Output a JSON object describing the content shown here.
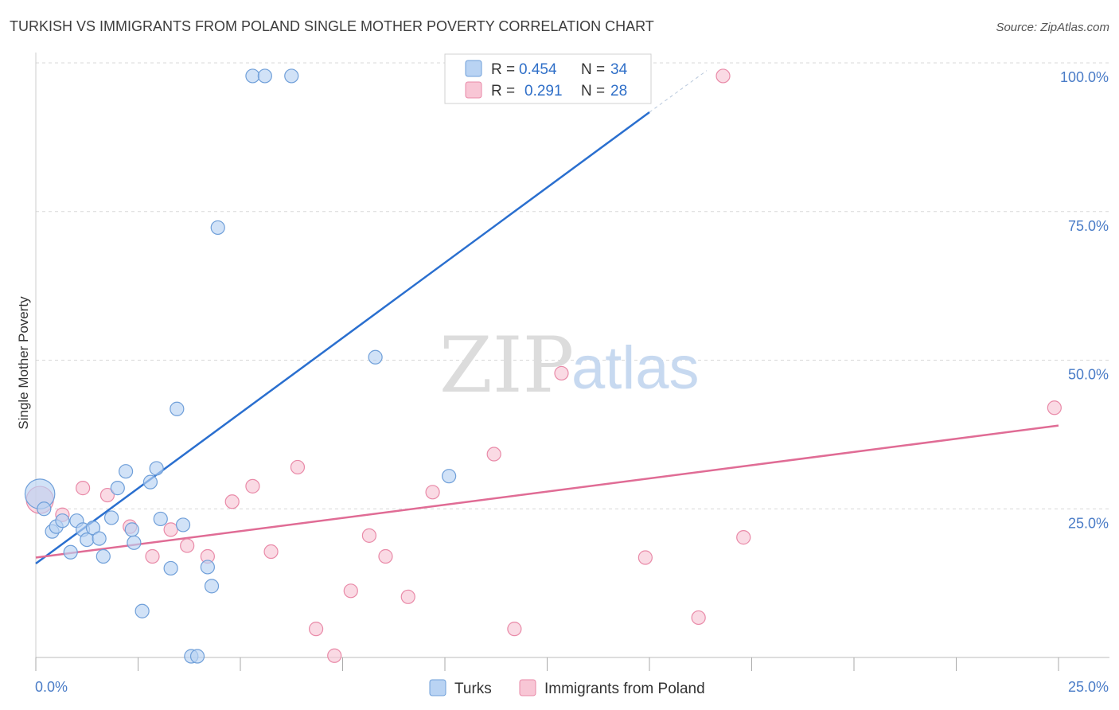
{
  "title": "TURKISH VS IMMIGRANTS FROM POLAND SINGLE MOTHER POVERTY CORRELATION CHART",
  "source": "Source: ZipAtlas.com",
  "watermark": {
    "zip": "ZIP",
    "atlas": "atlas"
  },
  "colors": {
    "turks_fill": "#b9d3f3",
    "turks_stroke": "#6f9fd9",
    "turks_line": "#2a6fcf",
    "poland_fill": "#f8c6d5",
    "poland_stroke": "#e98aa8",
    "poland_line": "#e06c95",
    "grid": "#d8d8d8",
    "tick_text": "#4a7cc7"
  },
  "legend": {
    "rows": [
      {
        "r_label": "R =",
        "r_value": "0.454",
        "n_label": "N =",
        "n_value": "34"
      },
      {
        "r_label": "R =",
        "r_value": "0.291",
        "n_label": "N =",
        "n_value": "28"
      }
    ]
  },
  "bottom_legend": [
    "Turks",
    "Immigrants from Poland"
  ],
  "chart_data": {
    "type": "scatter",
    "title": "TURKISH VS IMMIGRANTS FROM POLAND SINGLE MOTHER POVERTY CORRELATION CHART",
    "xlabel": "",
    "ylabel": "Single Mother Poverty",
    "xlim": [
      0,
      25
    ],
    "ylim": [
      0,
      100
    ],
    "x_tick_labels": [
      "0.0%",
      "25.0%"
    ],
    "y_tick_labels": [
      "100.0%",
      "75.0%",
      "50.0%",
      "25.0%"
    ],
    "y_ticks": [
      100,
      75,
      50,
      25
    ],
    "series": [
      {
        "name": "Turks",
        "R": 0.454,
        "N": 34,
        "trend": {
          "x0": 0,
          "y0": 15.8,
          "x1": 15,
          "y1": 91.7,
          "dash_to_x": 16.4,
          "dash_to_y": 98.7
        },
        "points": [
          {
            "x": 0.1,
            "y": 27.5,
            "s": 2.2
          },
          {
            "x": 0.2,
            "y": 25.0,
            "s": 1
          },
          {
            "x": 0.4,
            "y": 21.2,
            "s": 1
          },
          {
            "x": 0.5,
            "y": 22.0,
            "s": 1
          },
          {
            "x": 0.65,
            "y": 23.0,
            "s": 1
          },
          {
            "x": 0.85,
            "y": 17.7,
            "s": 1
          },
          {
            "x": 1.0,
            "y": 23.0,
            "s": 1
          },
          {
            "x": 1.15,
            "y": 21.5,
            "s": 1
          },
          {
            "x": 1.25,
            "y": 19.8,
            "s": 1
          },
          {
            "x": 1.4,
            "y": 21.8,
            "s": 1
          },
          {
            "x": 1.55,
            "y": 20.0,
            "s": 1
          },
          {
            "x": 1.65,
            "y": 17.0,
            "s": 1
          },
          {
            "x": 1.85,
            "y": 23.5,
            "s": 1
          },
          {
            "x": 2.0,
            "y": 28.5,
            "s": 1
          },
          {
            "x": 2.2,
            "y": 31.3,
            "s": 1
          },
          {
            "x": 2.35,
            "y": 21.5,
            "s": 1
          },
          {
            "x": 2.4,
            "y": 19.3,
            "s": 1
          },
          {
            "x": 2.6,
            "y": 7.8,
            "s": 1
          },
          {
            "x": 2.8,
            "y": 29.5,
            "s": 1
          },
          {
            "x": 2.95,
            "y": 31.8,
            "s": 1
          },
          {
            "x": 3.05,
            "y": 23.3,
            "s": 1
          },
          {
            "x": 3.3,
            "y": 15.0,
            "s": 1
          },
          {
            "x": 3.45,
            "y": 41.8,
            "s": 1
          },
          {
            "x": 3.6,
            "y": 22.3,
            "s": 1
          },
          {
            "x": 3.8,
            "y": 0.2,
            "s": 1
          },
          {
            "x": 3.95,
            "y": 0.2,
            "s": 1
          },
          {
            "x": 4.2,
            "y": 15.2,
            "s": 1
          },
          {
            "x": 4.3,
            "y": 12.0,
            "s": 1
          },
          {
            "x": 4.45,
            "y": 72.3,
            "s": 1
          },
          {
            "x": 5.3,
            "y": 97.8,
            "s": 1
          },
          {
            "x": 5.6,
            "y": 97.8,
            "s": 1
          },
          {
            "x": 6.25,
            "y": 97.8,
            "s": 1
          },
          {
            "x": 8.3,
            "y": 50.5,
            "s": 1
          },
          {
            "x": 10.1,
            "y": 30.5,
            "s": 1
          }
        ]
      },
      {
        "name": "Immigrants from Poland",
        "R": 0.291,
        "N": 28,
        "trend": {
          "x0": 0,
          "y0": 16.8,
          "x1": 25,
          "y1": 39.0
        },
        "points": [
          {
            "x": 0.1,
            "y": 26.5,
            "s": 2.0
          },
          {
            "x": 0.65,
            "y": 24.0,
            "s": 1
          },
          {
            "x": 1.15,
            "y": 28.5,
            "s": 1
          },
          {
            "x": 1.75,
            "y": 27.3,
            "s": 1
          },
          {
            "x": 2.3,
            "y": 22.0,
            "s": 1
          },
          {
            "x": 2.85,
            "y": 17.0,
            "s": 1
          },
          {
            "x": 3.3,
            "y": 21.5,
            "s": 1
          },
          {
            "x": 3.7,
            "y": 18.8,
            "s": 1
          },
          {
            "x": 4.2,
            "y": 17.0,
            "s": 1
          },
          {
            "x": 4.8,
            "y": 26.2,
            "s": 1
          },
          {
            "x": 5.3,
            "y": 28.8,
            "s": 1
          },
          {
            "x": 5.75,
            "y": 17.8,
            "s": 1
          },
          {
            "x": 6.4,
            "y": 32.0,
            "s": 1
          },
          {
            "x": 6.85,
            "y": 4.8,
            "s": 1
          },
          {
            "x": 7.3,
            "y": 0.3,
            "s": 1
          },
          {
            "x": 7.7,
            "y": 11.2,
            "s": 1
          },
          {
            "x": 8.15,
            "y": 20.5,
            "s": 1
          },
          {
            "x": 8.55,
            "y": 17.0,
            "s": 1
          },
          {
            "x": 9.1,
            "y": 10.2,
            "s": 1
          },
          {
            "x": 9.7,
            "y": 27.8,
            "s": 1
          },
          {
            "x": 11.2,
            "y": 34.2,
            "s": 1
          },
          {
            "x": 11.7,
            "y": 4.8,
            "s": 1
          },
          {
            "x": 12.85,
            "y": 47.8,
            "s": 1
          },
          {
            "x": 14.9,
            "y": 16.8,
            "s": 1
          },
          {
            "x": 16.2,
            "y": 6.7,
            "s": 1
          },
          {
            "x": 16.8,
            "y": 97.8,
            "s": 1
          },
          {
            "x": 17.3,
            "y": 20.2,
            "s": 1
          },
          {
            "x": 24.9,
            "y": 42.0,
            "s": 1
          }
        ]
      }
    ]
  }
}
